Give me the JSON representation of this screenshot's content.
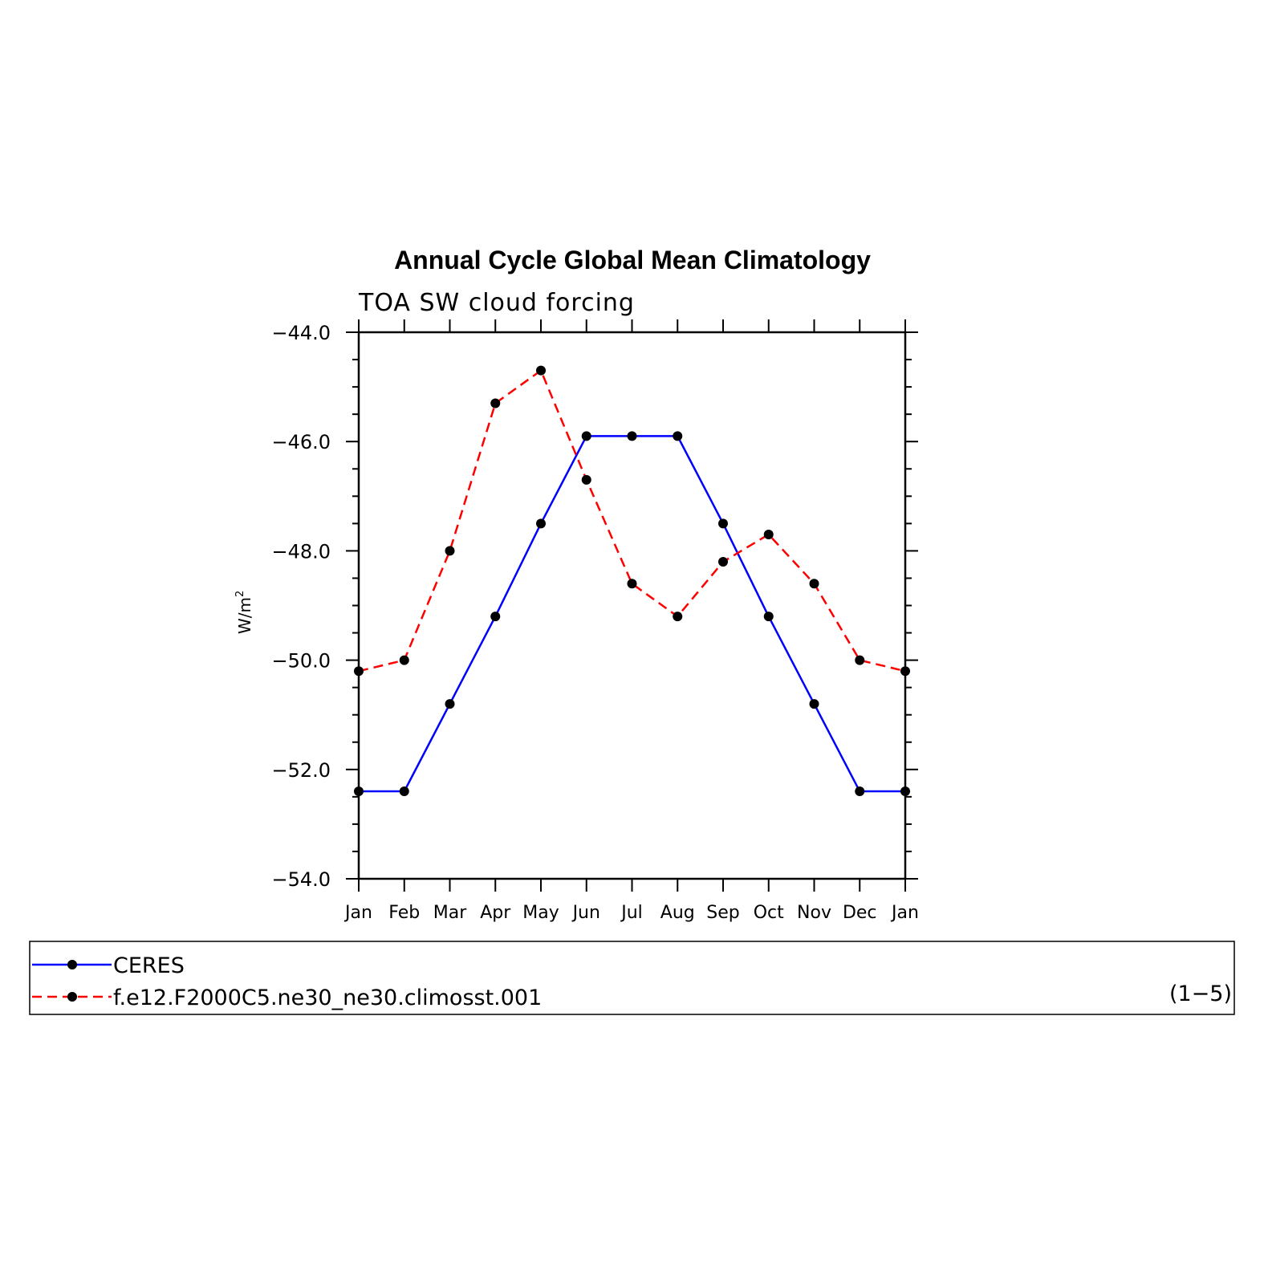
{
  "chart_data": {
    "type": "line",
    "title": "Annual Cycle Global Mean Climatology",
    "subtitle": "TOA SW cloud forcing",
    "xlabel": "",
    "ylabel": "W/m",
    "ylabel_superscript": "2",
    "ylim": [
      -54.0,
      -44.0
    ],
    "y_ticks": [
      "−44.0",
      "−46.0",
      "−48.0",
      "−50.0",
      "−52.0",
      "−54.0"
    ],
    "y_tick_values": [
      -44.0,
      -46.0,
      -48.0,
      -50.0,
      -52.0,
      -54.0
    ],
    "categories": [
      "Jan",
      "Feb",
      "Mar",
      "Apr",
      "May",
      "Jun",
      "Jul",
      "Aug",
      "Sep",
      "Oct",
      "Nov",
      "Dec",
      "Jan"
    ],
    "grid": false,
    "legend_position": "bottom",
    "series": [
      {
        "name": "CERES",
        "color": "#0000ff",
        "line_style": "solid",
        "values": [
          -52.4,
          -52.4,
          -50.8,
          -49.2,
          -47.5,
          -45.9,
          -45.9,
          -45.9,
          -47.5,
          -49.2,
          -50.8,
          -52.4,
          -52.4
        ]
      },
      {
        "name": "f.e12.F2000C5.ne30_ne30.climosst.001",
        "color": "#ff0000",
        "line_style": "dashed",
        "values": [
          -50.2,
          -50.0,
          -48.0,
          -45.3,
          -44.7,
          -46.7,
          -48.6,
          -49.2,
          -48.2,
          -47.7,
          -48.6,
          -50.0,
          -50.2
        ]
      }
    ],
    "legend_note": "(1−5)"
  }
}
